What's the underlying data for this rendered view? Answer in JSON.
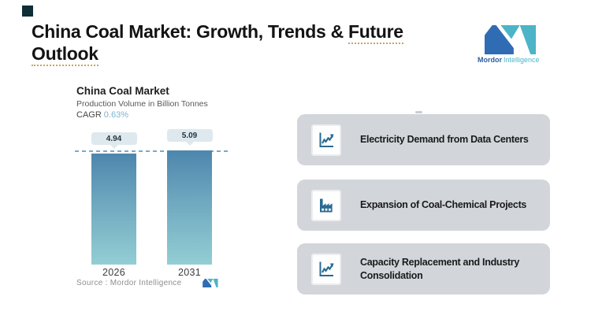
{
  "header": {
    "title_prefix": "China Coal Market: Growth, Trends & ",
    "title_word_underlined": "Future",
    "title_line2": "Outlook",
    "logo_text_bold": "Mordor",
    "logo_text_light": "Intelligence"
  },
  "chart": {
    "title": "China Coal Market",
    "subtitle": "Production Volume in Billion Tonnes",
    "cagr_label": "CAGR",
    "cagr_value": "0.63%",
    "source_text": "Source :  Mordor Intelligence"
  },
  "chart_data": {
    "type": "bar",
    "title": "China Coal Market",
    "subtitle": "Production Volume in Billion Tonnes",
    "unit": "Billion Tonnes",
    "cagr_pct": 0.63,
    "categories": [
      "2026",
      "2031"
    ],
    "values": [
      4.94,
      5.09
    ],
    "value_labels": [
      "4.94",
      "5.09"
    ],
    "ylim": [
      0,
      5.09
    ],
    "grid": false,
    "legend": "none",
    "reference_line": {
      "style": "dashed",
      "at_value": 4.94
    },
    "bar_gradient_top": "#4d86ad",
    "bar_gradient_bottom": "#93ced4",
    "source": "Mordor Intelligence"
  },
  "drivers": [
    {
      "label": "Electricity Demand from Data Centers",
      "icon": "trend-chart-icon"
    },
    {
      "label": "Expansion of Coal-Chemical Projects",
      "icon": "factory-icon"
    },
    {
      "label": "Capacity Replacement and Industry Consolidation",
      "icon": "trend-chart-icon"
    }
  ],
  "colors": {
    "accent_blue": "#2f6cb4",
    "accent_teal": "#4cb4c6",
    "icon_blue": "#2a6a93",
    "card_bg": "#d2d6db",
    "badge_bg": "#dee9ee",
    "dashed_line": "#7ca8c5",
    "cagr_value": "#7db4cd",
    "underline_squiggle": "#c9a267",
    "corner_square": "#0e2e38"
  }
}
